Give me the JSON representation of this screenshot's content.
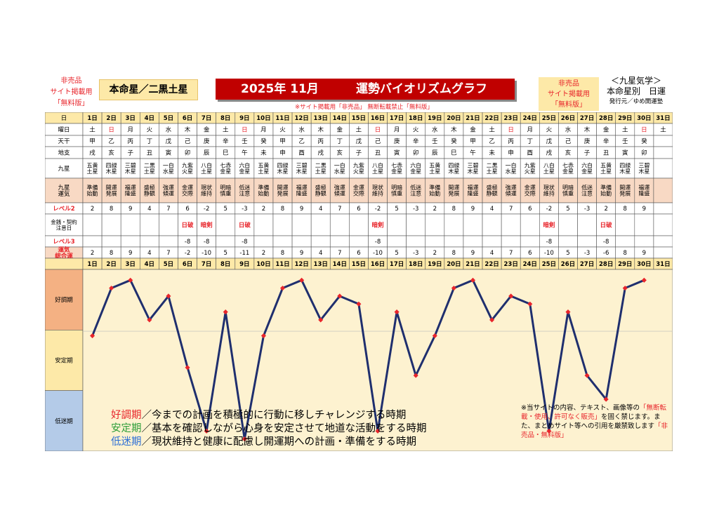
{
  "header": {
    "left_lines": [
      "非売品",
      "サイト掲載用",
      "「無料版」"
    ],
    "main_star": "本命星／二黒土星",
    "title_year": "2025年 11月",
    "title_text": "運勢バイオリズムグラフ",
    "notice": "※サイト掲載用「非売品」 無断転載禁止「無料版」",
    "right_lines": [
      "非売品",
      "サイト掲載用",
      "「無料版」"
    ],
    "brand_line1": "＜九星気学＞",
    "brand_line2": "本命星別　日運",
    "brand_line3": "発行元／ゆめ開運塾"
  },
  "row_labels": {
    "day": "日",
    "weekday": "曜日",
    "stem": "天干",
    "branch": "地支",
    "star": "九星",
    "fortune": "九星\n運気",
    "level2": "レベル2",
    "money": "金銭・契約\n注意日",
    "level3": "レベル3",
    "total": "運気\n総合運",
    "zone_good": "好調期",
    "zone_stable": "安定期",
    "zone_low": "低迷期"
  },
  "colors": {
    "header_bg": "#fde9a8",
    "label_bg": "#f8d9c4",
    "good_bg": "#f4b183",
    "stable_bg": "#fde9a8",
    "low_bg": "#b4cbe8",
    "plot_bg": "#fdf2d0",
    "line": "#1f2f6e",
    "point": "#e8252b",
    "red_text": "#e8252b"
  },
  "columns": [
    {
      "day": "1日",
      "wd": "土",
      "stem": "甲",
      "branch": "戌",
      "star": "五黄\n土星",
      "fort": "準備\n始動",
      "lv2": "2",
      "money": "",
      "lv3": "",
      "total": "2",
      "sun": false
    },
    {
      "day": "2日",
      "wd": "日",
      "stem": "乙",
      "branch": "亥",
      "star": "四緑\n木星",
      "fort": "開運\n発展",
      "lv2": "8",
      "money": "",
      "lv3": "",
      "total": "8",
      "sun": true
    },
    {
      "day": "3日",
      "wd": "月",
      "stem": "丙",
      "branch": "子",
      "star": "三碧\n木星",
      "fort": "福運\n隆盛",
      "lv2": "9",
      "money": "",
      "lv3": "",
      "total": "9",
      "sun": false
    },
    {
      "day": "4日",
      "wd": "火",
      "stem": "丁",
      "branch": "丑",
      "star": "二黒\n土星",
      "fort": "盛極\n静観",
      "lv2": "4",
      "money": "",
      "lv3": "",
      "total": "4",
      "sun": false
    },
    {
      "day": "5日",
      "wd": "水",
      "stem": "戊",
      "branch": "寅",
      "star": "一白\n水星",
      "fort": "強運\n傾運",
      "lv2": "7",
      "money": "",
      "lv3": "",
      "total": "7",
      "sun": false
    },
    {
      "day": "6日",
      "wd": "木",
      "stem": "己",
      "branch": "卯",
      "star": "九紫\n火星",
      "fort": "金運\n交際",
      "lv2": "6",
      "money": "日破",
      "lv3": "-8",
      "total": "-2",
      "sun": false
    },
    {
      "day": "7日",
      "wd": "金",
      "stem": "庚",
      "branch": "辰",
      "star": "八白\n土星",
      "fort": "現状\n維持",
      "lv2": "-2",
      "money": "暗剣",
      "lv3": "-8",
      "total": "-10",
      "sun": false
    },
    {
      "day": "8日",
      "wd": "土",
      "stem": "辛",
      "branch": "巳",
      "star": "七赤\n金星",
      "fort": "明暗\n慎重",
      "lv2": "5",
      "money": "",
      "lv3": "",
      "total": "5",
      "sun": false
    },
    {
      "day": "9日",
      "wd": "日",
      "stem": "壬",
      "branch": "午",
      "star": "六白\n金星",
      "fort": "低迷\n注意",
      "lv2": "-3",
      "money": "日破",
      "lv3": "-8",
      "total": "-11",
      "sun": true
    },
    {
      "day": "10日",
      "wd": "月",
      "stem": "癸",
      "branch": "未",
      "star": "五黄\n土星",
      "fort": "準備\n始動",
      "lv2": "2",
      "money": "",
      "lv3": "",
      "total": "2",
      "sun": false
    },
    {
      "day": "11日",
      "wd": "火",
      "stem": "甲",
      "branch": "申",
      "star": "四緑\n木星",
      "fort": "開運\n発展",
      "lv2": "8",
      "money": "",
      "lv3": "",
      "total": "8",
      "sun": false
    },
    {
      "day": "12日",
      "wd": "水",
      "stem": "乙",
      "branch": "酉",
      "star": "三碧\n木星",
      "fort": "福運\n隆盛",
      "lv2": "9",
      "money": "",
      "lv3": "",
      "total": "9",
      "sun": false
    },
    {
      "day": "13日",
      "wd": "木",
      "stem": "丙",
      "branch": "戌",
      "star": "二黒\n土星",
      "fort": "盛極\n静観",
      "lv2": "4",
      "money": "",
      "lv3": "",
      "total": "4",
      "sun": false
    },
    {
      "day": "14日",
      "wd": "金",
      "stem": "丁",
      "branch": "亥",
      "star": "一白\n水星",
      "fort": "強運\n傾運",
      "lv2": "7",
      "money": "",
      "lv3": "",
      "total": "7",
      "sun": false
    },
    {
      "day": "15日",
      "wd": "土",
      "stem": "戊",
      "branch": "子",
      "star": "九紫\n火星",
      "fort": "金運\n交際",
      "lv2": "6",
      "money": "",
      "lv3": "",
      "total": "6",
      "sun": false
    },
    {
      "day": "16日",
      "wd": "日",
      "stem": "己",
      "branch": "丑",
      "star": "八白\n土星",
      "fort": "現状\n維持",
      "lv2": "-2",
      "money": "暗剣",
      "lv3": "-8",
      "total": "-10",
      "sun": true
    },
    {
      "day": "17日",
      "wd": "月",
      "stem": "庚",
      "branch": "寅",
      "star": "七赤\n金星",
      "fort": "明暗\n慎重",
      "lv2": "5",
      "money": "",
      "lv3": "",
      "total": "5",
      "sun": false
    },
    {
      "day": "18日",
      "wd": "火",
      "stem": "辛",
      "branch": "卯",
      "star": "六白\n金星",
      "fort": "低迷\n注意",
      "lv2": "-3",
      "money": "",
      "lv3": "",
      "total": "-3",
      "sun": false
    },
    {
      "day": "19日",
      "wd": "水",
      "stem": "壬",
      "branch": "辰",
      "star": "五黄\n土星",
      "fort": "準備\n始動",
      "lv2": "2",
      "money": "",
      "lv3": "",
      "total": "2",
      "sun": false
    },
    {
      "day": "20日",
      "wd": "木",
      "stem": "癸",
      "branch": "巳",
      "star": "四緑\n木星",
      "fort": "開運\n発展",
      "lv2": "8",
      "money": "",
      "lv3": "",
      "total": "8",
      "sun": false
    },
    {
      "day": "21日",
      "wd": "金",
      "stem": "甲",
      "branch": "午",
      "star": "三碧\n木星",
      "fort": "福運\n隆盛",
      "lv2": "9",
      "money": "",
      "lv3": "",
      "total": "9",
      "sun": false
    },
    {
      "day": "22日",
      "wd": "土",
      "stem": "乙",
      "branch": "未",
      "star": "二黒\n土星",
      "fort": "盛極\n静観",
      "lv2": "4",
      "money": "",
      "lv3": "",
      "total": "4",
      "sun": false
    },
    {
      "day": "23日",
      "wd": "日",
      "stem": "丙",
      "branch": "申",
      "star": "一白\n水星",
      "fort": "強運\n傾運",
      "lv2": "7",
      "money": "",
      "lv3": "",
      "total": "7",
      "sun": true
    },
    {
      "day": "24日",
      "wd": "月",
      "stem": "丁",
      "branch": "酉",
      "star": "九紫\n火星",
      "fort": "金運\n交際",
      "lv2": "6",
      "money": "",
      "lv3": "",
      "total": "6",
      "sun": false
    },
    {
      "day": "25日",
      "wd": "火",
      "stem": "戊",
      "branch": "戌",
      "star": "八白\n土星",
      "fort": "現状\n維持",
      "lv2": "-2",
      "money": "暗剣",
      "lv3": "-8",
      "total": "-10",
      "sun": false
    },
    {
      "day": "26日",
      "wd": "水",
      "stem": "己",
      "branch": "亥",
      "star": "七赤\n金星",
      "fort": "明暗\n慎重",
      "lv2": "5",
      "money": "",
      "lv3": "",
      "total": "5",
      "sun": false
    },
    {
      "day": "27日",
      "wd": "木",
      "stem": "庚",
      "branch": "子",
      "star": "六白\n金星",
      "fort": "低迷\n注意",
      "lv2": "-3",
      "money": "",
      "lv3": "",
      "total": "-3",
      "sun": false
    },
    {
      "day": "28日",
      "wd": "金",
      "stem": "辛",
      "branch": "丑",
      "star": "五黄\n土星",
      "fort": "準備\n始動",
      "lv2": "2",
      "money": "日破",
      "lv3": "-8",
      "total": "-6",
      "sun": false
    },
    {
      "day": "29日",
      "wd": "土",
      "stem": "壬",
      "branch": "寅",
      "star": "四緑\n木星",
      "fort": "開運\n発展",
      "lv2": "8",
      "money": "",
      "lv3": "",
      "total": "8",
      "sun": false
    },
    {
      "day": "30日",
      "wd": "日",
      "stem": "癸",
      "branch": "卯",
      "star": "三碧\n木星",
      "fort": "福運\n隆盛",
      "lv2": "9",
      "money": "",
      "lv3": "",
      "total": "9",
      "sun": true
    },
    {
      "day": "31日",
      "wd": "土",
      "stem": "",
      "branch": "",
      "star": "",
      "fort": "",
      "lv2": "",
      "money": "",
      "lv3": "",
      "total": "",
      "sun": false
    }
  ],
  "chart_data": {
    "type": "line",
    "x": [
      "1日",
      "2日",
      "3日",
      "4日",
      "5日",
      "6日",
      "7日",
      "8日",
      "9日",
      "10日",
      "11日",
      "12日",
      "13日",
      "14日",
      "15日",
      "16日",
      "17日",
      "18日",
      "19日",
      "20日",
      "21日",
      "22日",
      "23日",
      "24日",
      "25日",
      "26日",
      "27日",
      "28日",
      "29日",
      "30日"
    ],
    "series": [
      {
        "values": [
          2,
          8,
          9,
          4,
          7,
          -2,
          -10,
          5,
          -11,
          2,
          8,
          9,
          4,
          7,
          6,
          -10,
          5,
          -3,
          2,
          8,
          9,
          4,
          7,
          6,
          -10,
          5,
          -3,
          -6,
          8,
          9
        ]
      }
    ],
    "ylim": [
      -12,
      10
    ],
    "grid": false,
    "title": "",
    "xlabel": "",
    "ylabel": ""
  },
  "legend": {
    "good_name": "好調期",
    "good_desc": "／今までの計画を積極的に行動に移しチャレンジする時期",
    "stable_name": "安定期",
    "stable_desc": "／基本を確認しながら心身を安定させて地道な活動をする時期",
    "low_name": "低迷期",
    "low_desc": "／現状維持と健康に配慮し開運期への計画・準備をする時期"
  },
  "note": {
    "p1": "※当サイトの内容、テキスト、画像等の",
    "p2": "「無断転載・使用、許可なく販売」",
    "p3": "を固く禁じます。また、まとめサイト等への引用を厳禁致します",
    "p4": "「非売品・無料版」"
  }
}
